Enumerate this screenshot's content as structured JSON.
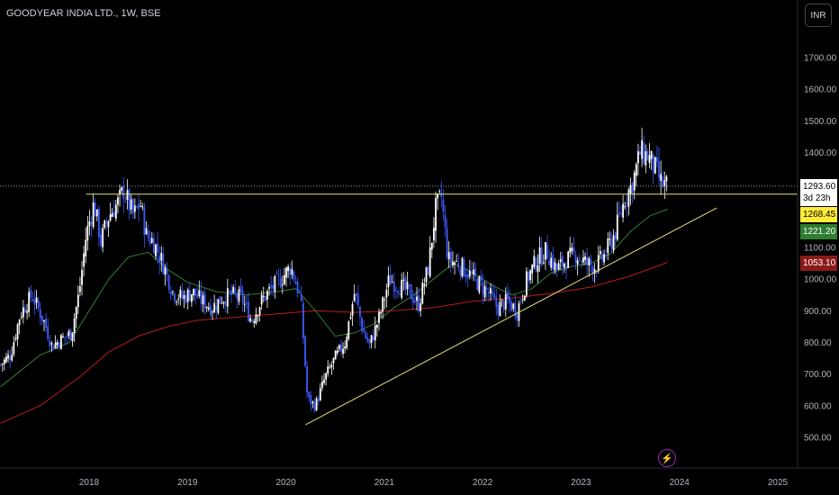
{
  "header": {
    "title": "GOODYEAR INDIA LTD., 1W, BSE",
    "currency_button": "INR"
  },
  "price_tags": [
    {
      "label": "1293.60",
      "sub": "3d 23h",
      "bg": "#ffffff",
      "fg": "#000000"
    },
    {
      "label": "1268.45",
      "bg": "#ffeb3b",
      "fg": "#000000"
    },
    {
      "label": "1221.20",
      "bg": "#2e7d32",
      "fg": "#ffffff"
    },
    {
      "label": "1053.10",
      "bg": "#8b1a1a",
      "fg": "#ffffff"
    }
  ],
  "chart_data": {
    "type": "candlestick",
    "timeframe": "1W",
    "y_ticks": [
      500,
      600,
      700,
      800,
      900,
      1000,
      1100,
      1200,
      1300,
      1400,
      1500,
      1600,
      1700
    ],
    "y_tick_labels": [
      "500.00",
      "600.00",
      "700.00",
      "800.00",
      "900.00",
      "1000.00",
      "1100.00",
      "1200.00",
      "1300.00",
      "1400.00",
      "1500.00",
      "1600.00",
      "1700.00"
    ],
    "x_ticks": [
      "2018",
      "2019",
      "2020",
      "2021",
      "2022",
      "2023",
      "2024",
      "2025"
    ],
    "x_tick_years": [
      2018,
      2019,
      2020,
      2021,
      2022,
      2023,
      2024,
      2025
    ],
    "ylim": [
      440,
      1740
    ],
    "xlim": [
      2017.1,
      2025.5
    ],
    "colors": {
      "up": "#ffffff",
      "down": "#3d5afe",
      "ma_short": "#2e7d32",
      "ma_long": "#b71c1c",
      "trend": "#e6e07a",
      "resistance": "#e6e07a"
    },
    "price_path": [
      [
        2017.1,
        730
      ],
      [
        2017.2,
        760
      ],
      [
        2017.3,
        890
      ],
      [
        2017.42,
        950
      ],
      [
        2017.55,
        860
      ],
      [
        2017.62,
        790
      ],
      [
        2017.72,
        810
      ],
      [
        2017.82,
        830
      ],
      [
        2017.9,
        960
      ],
      [
        2017.97,
        1140
      ],
      [
        2018.05,
        1240
      ],
      [
        2018.12,
        1120
      ],
      [
        2018.2,
        1200
      ],
      [
        2018.3,
        1245
      ],
      [
        2018.35,
        1280
      ],
      [
        2018.45,
        1200
      ],
      [
        2018.52,
        1240
      ],
      [
        2018.58,
        1140
      ],
      [
        2018.65,
        1120
      ],
      [
        2018.75,
        1050
      ],
      [
        2018.85,
        960
      ],
      [
        2018.95,
        940
      ],
      [
        2019.05,
        960
      ],
      [
        2019.15,
        930
      ],
      [
        2019.25,
        910
      ],
      [
        2019.35,
        940
      ],
      [
        2019.45,
        950
      ],
      [
        2019.55,
        940
      ],
      [
        2019.65,
        870
      ],
      [
        2019.75,
        930
      ],
      [
        2019.85,
        970
      ],
      [
        2019.95,
        1000
      ],
      [
        2020.05,
        1040
      ],
      [
        2020.15,
        940
      ],
      [
        2020.22,
        620
      ],
      [
        2020.3,
        600
      ],
      [
        2020.4,
        690
      ],
      [
        2020.5,
        750
      ],
      [
        2020.6,
        800
      ],
      [
        2020.7,
        960
      ],
      [
        2020.78,
        840
      ],
      [
        2020.85,
        790
      ],
      [
        2020.95,
        880
      ],
      [
        2021.05,
        1000
      ],
      [
        2021.15,
        980
      ],
      [
        2021.25,
        960
      ],
      [
        2021.35,
        920
      ],
      [
        2021.45,
        1040
      ],
      [
        2021.52,
        1220
      ],
      [
        2021.58,
        1260
      ],
      [
        2021.65,
        1060
      ],
      [
        2021.75,
        1050
      ],
      [
        2021.85,
        1020
      ],
      [
        2021.95,
        990
      ],
      [
        2022.05,
        960
      ],
      [
        2022.15,
        910
      ],
      [
        2022.25,
        930
      ],
      [
        2022.35,
        900
      ],
      [
        2022.45,
        1000
      ],
      [
        2022.55,
        1060
      ],
      [
        2022.65,
        1090
      ],
      [
        2022.75,
        1030
      ],
      [
        2022.85,
        1060
      ],
      [
        2022.95,
        1080
      ],
      [
        2023.05,
        1050
      ],
      [
        2023.15,
        1040
      ],
      [
        2023.25,
        1080
      ],
      [
        2023.35,
        1150
      ],
      [
        2023.45,
        1260
      ],
      [
        2023.52,
        1300
      ],
      [
        2023.6,
        1400
      ],
      [
        2023.68,
        1390
      ],
      [
        2023.75,
        1350
      ],
      [
        2023.82,
        1300
      ],
      [
        2023.88,
        1294
      ]
    ],
    "ma_short": [
      [
        2017.1,
        660
      ],
      [
        2017.5,
        760
      ],
      [
        2017.8,
        800
      ],
      [
        2018.0,
        900
      ],
      [
        2018.2,
        1000
      ],
      [
        2018.4,
        1070
      ],
      [
        2018.6,
        1085
      ],
      [
        2018.8,
        1030
      ],
      [
        2019.0,
        990
      ],
      [
        2019.3,
        960
      ],
      [
        2019.6,
        950
      ],
      [
        2019.9,
        960
      ],
      [
        2020.1,
        970
      ],
      [
        2020.3,
        900
      ],
      [
        2020.5,
        820
      ],
      [
        2020.7,
        830
      ],
      [
        2020.9,
        860
      ],
      [
        2021.1,
        910
      ],
      [
        2021.3,
        950
      ],
      [
        2021.5,
        1000
      ],
      [
        2021.7,
        1050
      ],
      [
        2021.9,
        1020
      ],
      [
        2022.1,
        980
      ],
      [
        2022.3,
        950
      ],
      [
        2022.5,
        970
      ],
      [
        2022.7,
        1020
      ],
      [
        2022.9,
        1040
      ],
      [
        2023.1,
        1050
      ],
      [
        2023.3,
        1080
      ],
      [
        2023.5,
        1150
      ],
      [
        2023.7,
        1200
      ],
      [
        2023.88,
        1221
      ]
    ],
    "ma_long": [
      [
        2017.1,
        545
      ],
      [
        2017.5,
        600
      ],
      [
        2017.9,
        690
      ],
      [
        2018.2,
        770
      ],
      [
        2018.5,
        820
      ],
      [
        2018.8,
        850
      ],
      [
        2019.1,
        870
      ],
      [
        2019.5,
        880
      ],
      [
        2019.9,
        890
      ],
      [
        2020.3,
        900
      ],
      [
        2020.7,
        895
      ],
      [
        2021.1,
        900
      ],
      [
        2021.5,
        910
      ],
      [
        2021.9,
        930
      ],
      [
        2022.3,
        940
      ],
      [
        2022.7,
        955
      ],
      [
        2023.1,
        975
      ],
      [
        2023.5,
        1010
      ],
      [
        2023.88,
        1053
      ]
    ],
    "trendline": [
      [
        2020.2,
        540
      ],
      [
        2024.38,
        1225
      ]
    ],
    "resistance_line": {
      "y": 1268.45,
      "from": 2017.97,
      "to": 2025.5
    },
    "last_price_line": {
      "y": 1293.6
    }
  }
}
